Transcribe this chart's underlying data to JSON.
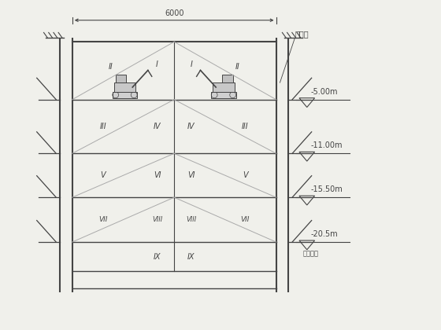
{
  "bg_color": "#f0f0eb",
  "line_color": "#444444",
  "text_color": "#444444",
  "light_line": "#888888",
  "fig_width": 5.6,
  "fig_height": 4.2,
  "dpi": 100,
  "anchor_label": "锡杆机",
  "base_label": "基底标高",
  "dim_label": "6000",
  "depth_labels": [
    "-5.00m",
    "-11.00m",
    "-15.50m",
    "-20.5m"
  ]
}
